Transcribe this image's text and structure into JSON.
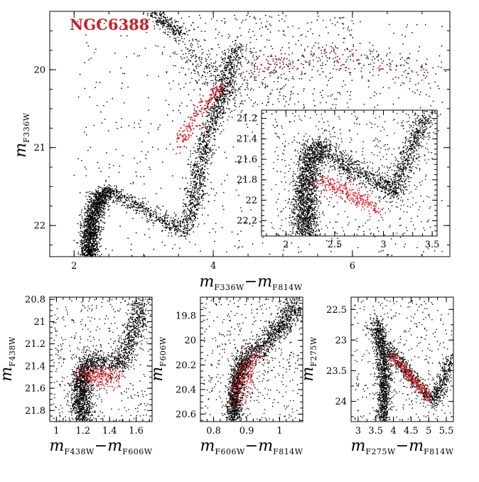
{
  "colors": {
    "background": "#ffffff",
    "points": "#000000",
    "highlight": "#e8202a",
    "title": "#c8202a"
  },
  "chart_data": [
    {
      "id": "main",
      "type": "scatter",
      "title": "NGC6388",
      "xlabel": {
        "main": "m",
        "sub1": "F336W",
        "minus": "−m",
        "sub2": "F814W"
      },
      "ylabel": {
        "main": "m",
        "sub": "F336W"
      },
      "xlim": [
        1.65,
        7.4
      ],
      "ylim": [
        22.4,
        19.25
      ],
      "invert_y": true,
      "xticks": [
        2,
        4,
        6
      ],
      "yticks": [
        20,
        21,
        22
      ],
      "series": [
        {
          "role": "cluster-stars",
          "color": "#000000",
          "count": 4500,
          "features": [
            "lower main sequence around x 2.1-2.5, y 21.5-22.4",
            "subgiant branch from (2.4,21.55) to (3.7,22.1)",
            "red giant branch rising from (3.6,21.9) to (4.3,20.1)",
            "horizontal branch from (4.4,20.0) to (7.1,20.1)",
            "dense clump near x 3.1-3.5, y 19.25-19.45"
          ]
        },
        {
          "role": "highlighted-stars",
          "color": "#e8202a",
          "count": 240,
          "features": [
            "red giant segment from (3.5,20.95) to (4.15,20.2)",
            "horizontal branch from (4.4,20.0) to (7.0,20.15)"
          ]
        }
      ]
    },
    {
      "id": "inset",
      "type": "scatter",
      "xlim": [
        1.75,
        3.55
      ],
      "ylim": [
        22.35,
        21.12
      ],
      "invert_y": true,
      "xticks": [
        2,
        2.5,
        3,
        3.5
      ],
      "xticklabels": [
        "2",
        "2.5",
        "3",
        "3.5"
      ],
      "yticks": [
        21.2,
        21.4,
        21.6,
        21.8,
        22,
        22.2
      ],
      "yticklabels": [
        "21.2",
        "21.4",
        "21.6",
        "21.8",
        "22",
        "22.2"
      ],
      "series": [
        {
          "role": "cluster-stars",
          "color": "#000000",
          "count": 4000,
          "features": [
            "main sequence turn-off band near x 2.1-2.4, y 21.5-22.35",
            "subgiant branch from (2.3,21.55) to (3.1,21.85)",
            "red giant branch rising from (3.0,21.9) to (3.45,21.2)"
          ]
        },
        {
          "role": "highlighted-stars",
          "color": "#e8202a",
          "count": 300,
          "features": [
            "band from (2.35,21.8) to (2.95,22.1)"
          ]
        }
      ]
    },
    {
      "id": "panel-f438w",
      "type": "scatter",
      "xlabel": {
        "main": "m",
        "sub1": "F438W",
        "minus": "−m",
        "sub2": "F606W"
      },
      "ylabel": {
        "main": "m",
        "sub": "F438W"
      },
      "xlim": [
        0.95,
        1.72
      ],
      "ylim": [
        21.9,
        20.78
      ],
      "invert_y": true,
      "xticks": [
        1,
        1.2,
        1.4,
        1.6
      ],
      "xticklabels": [
        "1",
        "1.2",
        "1.4",
        "1.6"
      ],
      "yticks": [
        20.8,
        21,
        21.2,
        21.4,
        21.6,
        21.8
      ],
      "yticklabels": [
        "20.8",
        "21",
        "21.2",
        "21.4",
        "21.6",
        "21.8"
      ],
      "series": [
        {
          "role": "cluster-stars",
          "color": "#000000",
          "count": 3000
        },
        {
          "role": "highlighted-stars",
          "color": "#e8202a",
          "count": 250
        }
      ]
    },
    {
      "id": "panel-f606w",
      "type": "scatter",
      "xlabel": {
        "main": "m",
        "sub1": "F606W",
        "minus": "−m",
        "sub2": "F814W"
      },
      "ylabel": {
        "main": "m",
        "sub": "F606W"
      },
      "xlim": [
        0.76,
        1.07
      ],
      "ylim": [
        20.66,
        19.65
      ],
      "invert_y": true,
      "xticks": [
        0.8,
        0.9,
        1
      ],
      "xticklabels": [
        "0.8",
        "0.9",
        "1"
      ],
      "yticks": [
        19.8,
        20,
        20.2,
        20.4,
        20.6
      ],
      "yticklabels": [
        "19.8",
        "20",
        "20.2",
        "20.4",
        "20.6"
      ],
      "series": [
        {
          "role": "cluster-stars",
          "color": "#000000",
          "count": 3000
        },
        {
          "role": "highlighted-stars",
          "color": "#e8202a",
          "count": 250
        }
      ]
    },
    {
      "id": "panel-f275w",
      "type": "scatter",
      "xlabel": {
        "main": "m",
        "sub1": "F275W",
        "minus": "−m",
        "sub2": "F814W"
      },
      "ylabel": {
        "main": "m",
        "sub": "F275W"
      },
      "xlim": [
        2.8,
        5.7
      ],
      "ylim": [
        24.33,
        22.3
      ],
      "invert_y": true,
      "xticks": [
        3,
        3.5,
        4,
        4.5,
        5,
        5.5
      ],
      "xticklabels": [
        "3",
        "3.5",
        "4",
        "4.5",
        "5",
        "5.5"
      ],
      "yticks": [
        22.5,
        23,
        23.5,
        24
      ],
      "yticklabels": [
        "22.5",
        "23",
        "23.5",
        "24"
      ],
      "series": [
        {
          "role": "cluster-stars",
          "color": "#000000",
          "count": 3000
        },
        {
          "role": "highlighted-stars",
          "color": "#e8202a",
          "count": 250
        }
      ]
    }
  ]
}
